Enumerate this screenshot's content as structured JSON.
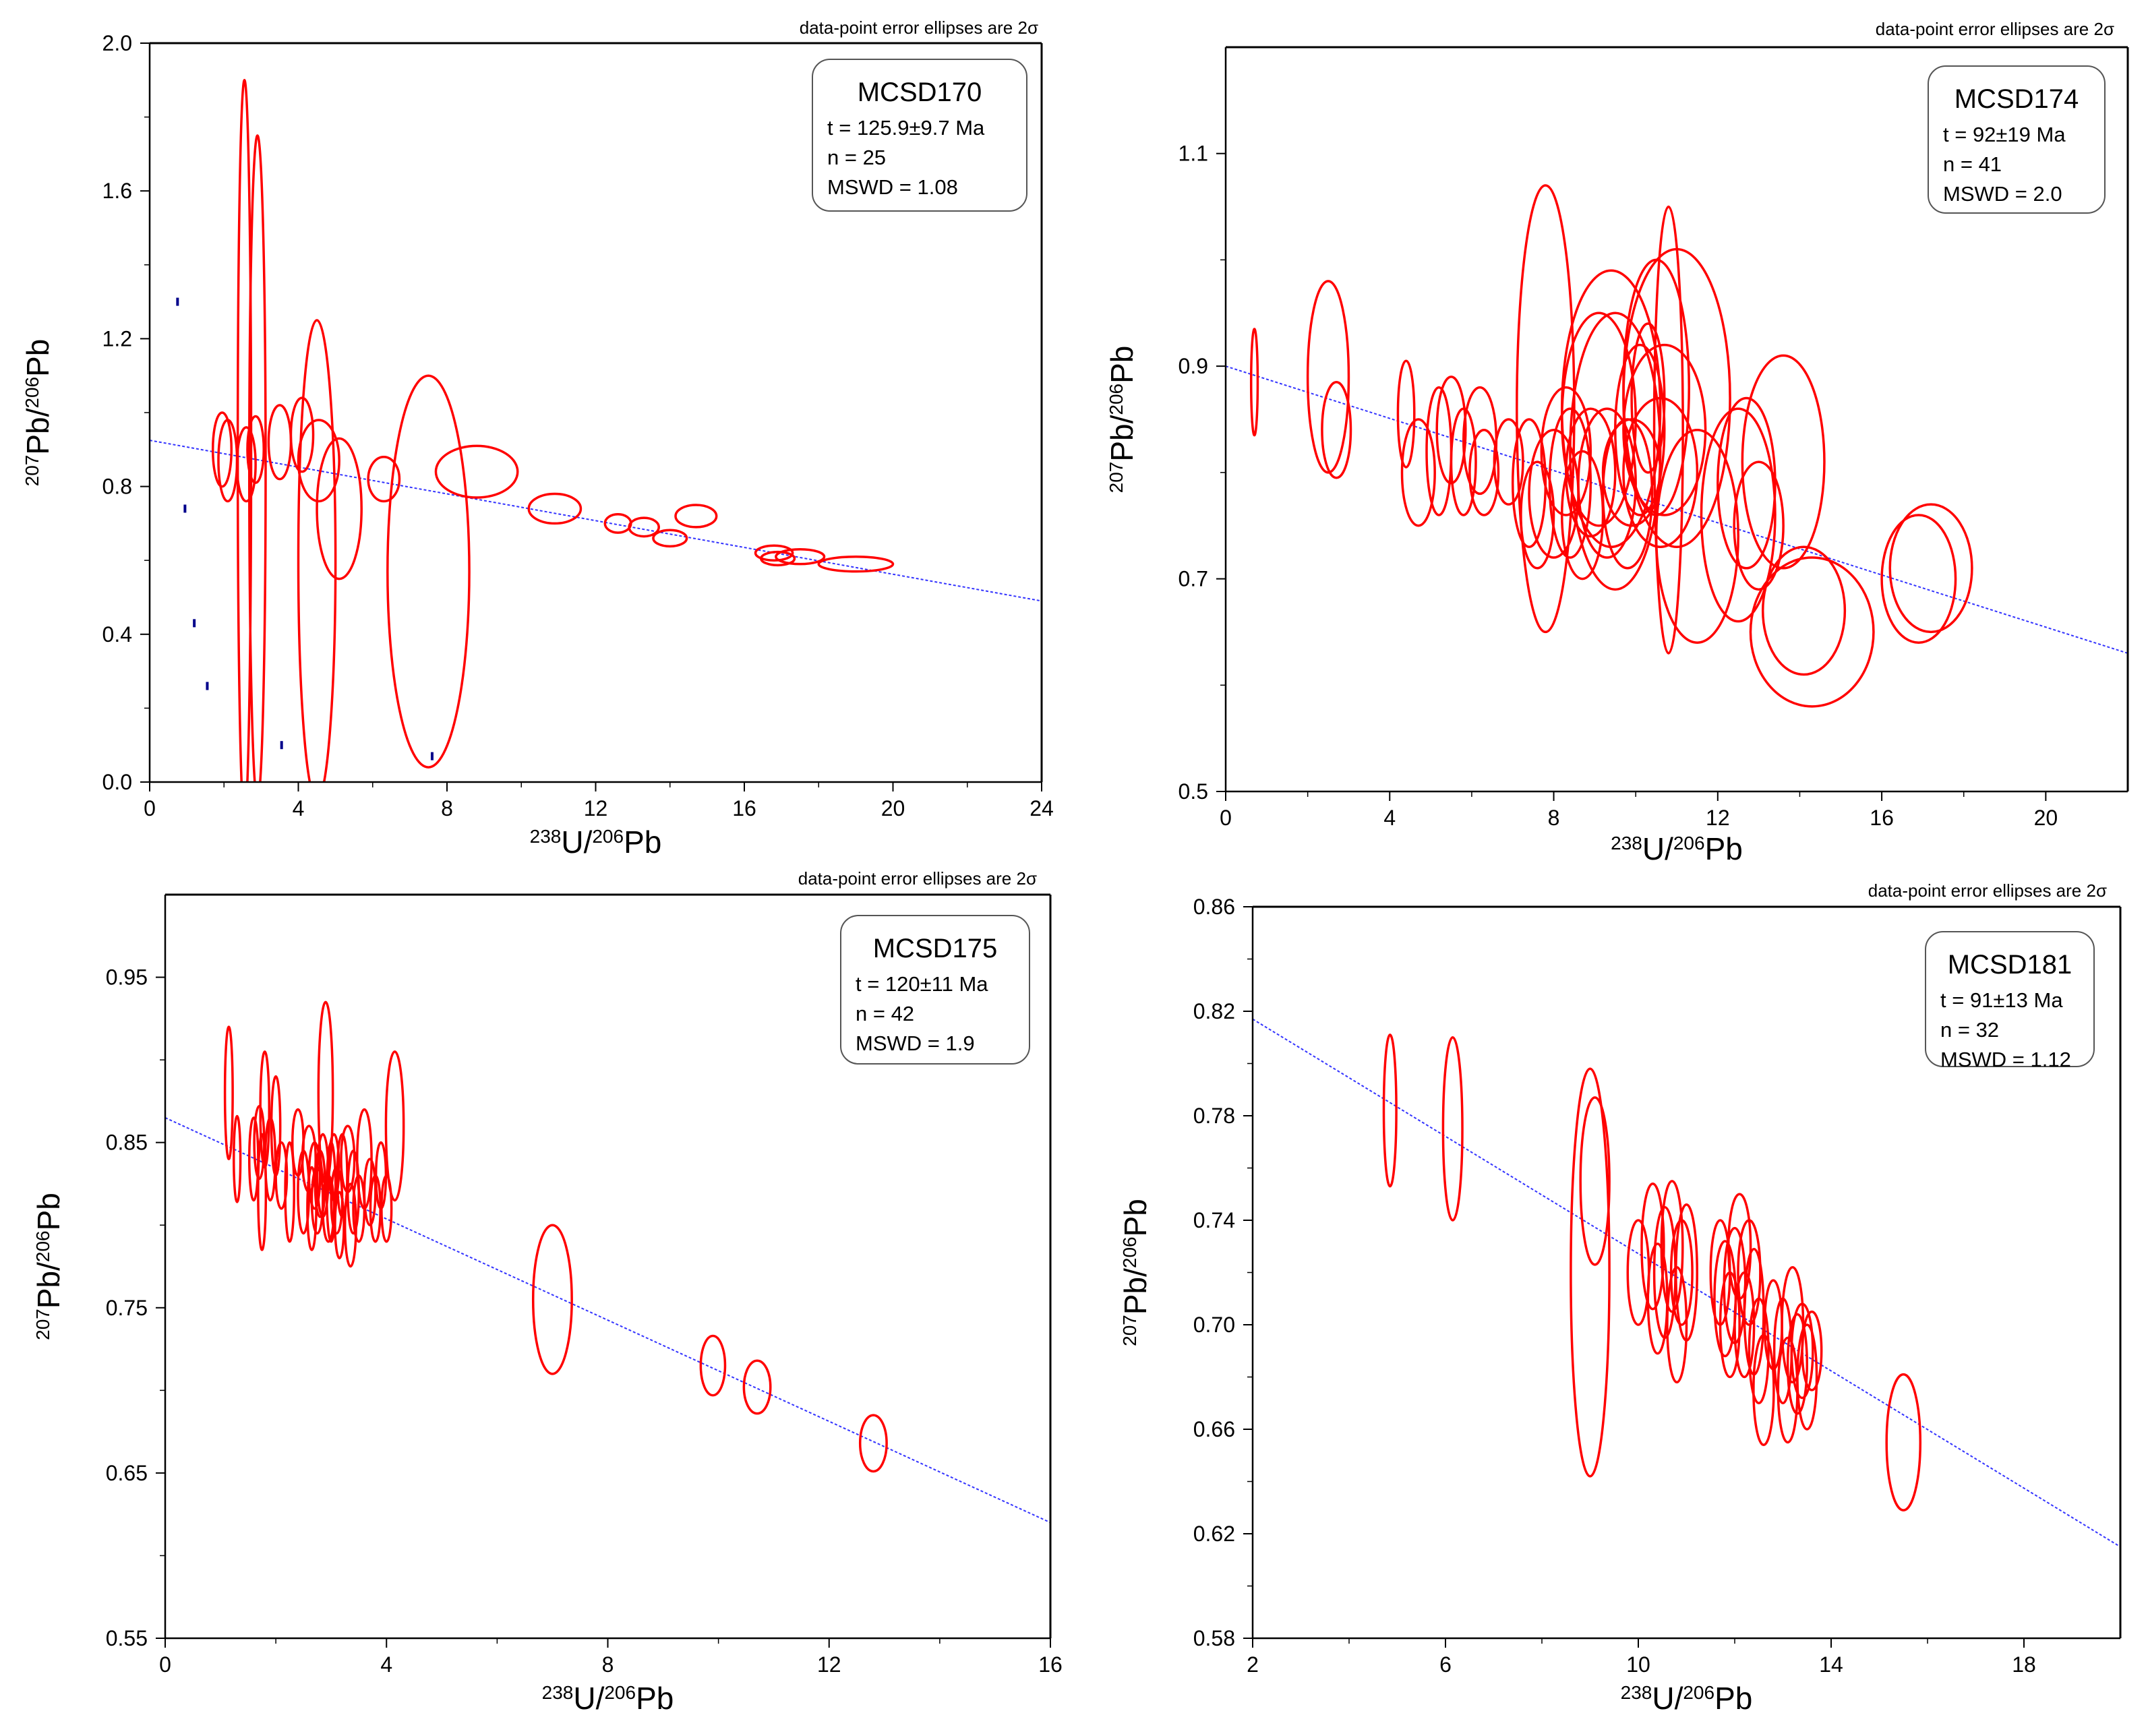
{
  "colors": {
    "ellipse": "#ff0000",
    "regression": "#3333ff",
    "axis": "#000000",
    "tick_marks": "#00008b"
  },
  "chart_data": [
    {
      "type": "scatter",
      "title": "MCSD170",
      "note": "data-point error ellipses are 2σ",
      "stats": {
        "age": "t = 125.9±9.7 Ma",
        "n": "n = 25",
        "mswd": "MSWD = 1.08"
      },
      "xlabel": {
        "base": "U/",
        "sup1": "238",
        "sup2": "206",
        "end": "Pb"
      },
      "ylabel": {
        "sup1": "207",
        "mid": "Pb/",
        "sup2": "206",
        "end": "Pb"
      },
      "xlim": [
        0,
        24
      ],
      "ylim": [
        0,
        2.0
      ],
      "xticks": [
        0,
        4,
        8,
        12,
        16,
        20,
        24
      ],
      "xtick_labels": [
        "0",
        "4",
        "8",
        "12",
        "16",
        "20",
        "24"
      ],
      "yticks": [
        0,
        0.4,
        0.8,
        1.2,
        1.6,
        2.0
      ],
      "ytick_labels": [
        "0.0",
        "0.4",
        "0.8",
        "1.2",
        "1.6",
        "2.0"
      ],
      "regression": {
        "x0": 0,
        "y0": 0.925,
        "x1": 24,
        "y1": 0.49
      },
      "ellipses": [
        {
          "x": 1.95,
          "y": 0.9,
          "rx": 0.25,
          "ry": 0.1
        },
        {
          "x": 2.1,
          "y": 0.87,
          "rx": 0.25,
          "ry": 0.11
        },
        {
          "x": 2.55,
          "y": 0.9,
          "rx": 0.18,
          "ry": 1.0
        },
        {
          "x": 2.6,
          "y": 0.86,
          "rx": 0.25,
          "ry": 0.1
        },
        {
          "x": 2.85,
          "y": 0.9,
          "rx": 0.22,
          "ry": 0.09
        },
        {
          "x": 2.9,
          "y": 0.85,
          "rx": 0.22,
          "ry": 0.9
        },
        {
          "x": 3.5,
          "y": 0.92,
          "rx": 0.3,
          "ry": 0.1
        },
        {
          "x": 4.1,
          "y": 0.94,
          "rx": 0.3,
          "ry": 0.1
        },
        {
          "x": 4.5,
          "y": 0.6,
          "rx": 0.5,
          "ry": 0.65
        },
        {
          "x": 4.55,
          "y": 0.87,
          "rx": 0.55,
          "ry": 0.11
        },
        {
          "x": 5.1,
          "y": 0.74,
          "rx": 0.6,
          "ry": 0.19
        },
        {
          "x": 6.3,
          "y": 0.82,
          "rx": 0.42,
          "ry": 0.06
        },
        {
          "x": 7.5,
          "y": 0.57,
          "rx": 1.1,
          "ry": 0.53
        },
        {
          "x": 8.8,
          "y": 0.84,
          "rx": 1.1,
          "ry": 0.07
        },
        {
          "x": 10.9,
          "y": 0.74,
          "rx": 0.7,
          "ry": 0.04
        },
        {
          "x": 12.6,
          "y": 0.7,
          "rx": 0.35,
          "ry": 0.025
        },
        {
          "x": 13.3,
          "y": 0.69,
          "rx": 0.4,
          "ry": 0.025
        },
        {
          "x": 14.0,
          "y": 0.66,
          "rx": 0.45,
          "ry": 0.022
        },
        {
          "x": 14.7,
          "y": 0.72,
          "rx": 0.55,
          "ry": 0.03
        },
        {
          "x": 16.8,
          "y": 0.62,
          "rx": 0.5,
          "ry": 0.02
        },
        {
          "x": 16.9,
          "y": 0.605,
          "rx": 0.45,
          "ry": 0.018
        },
        {
          "x": 17.5,
          "y": 0.61,
          "rx": 0.65,
          "ry": 0.02
        },
        {
          "x": 19.0,
          "y": 0.59,
          "rx": 1.0,
          "ry": 0.02
        }
      ],
      "dots": [
        {
          "x": 0.75,
          "y": 1.3
        },
        {
          "x": 0.95,
          "y": 0.74
        },
        {
          "x": 1.2,
          "y": 0.43
        },
        {
          "x": 1.55,
          "y": 0.26
        },
        {
          "x": 3.55,
          "y": 0.1
        },
        {
          "x": 7.6,
          "y": 0.07
        }
      ]
    },
    {
      "type": "scatter",
      "title": "MCSD174",
      "note": "data-point error ellipses are 2σ",
      "stats": {
        "age": "t = 92±19 Ma",
        "n": "n = 41",
        "mswd": "MSWD = 2.0"
      },
      "xlabel": {
        "base": "U/",
        "sup1": "238",
        "sup2": "206",
        "end": "Pb"
      },
      "ylabel": {
        "sup1": "207",
        "mid": "Pb/",
        "sup2": "206",
        "end": "Pb"
      },
      "xlim": [
        0,
        22
      ],
      "ylim": [
        0.5,
        1.2
      ],
      "xticks": [
        0,
        4,
        8,
        12,
        16,
        20
      ],
      "xtick_labels": [
        "0",
        "4",
        "8",
        "12",
        "16",
        "20"
      ],
      "yticks": [
        0.5,
        0.7,
        0.9,
        1.1
      ],
      "ytick_labels": [
        "0.5",
        "0.7",
        "0.9",
        "1.1"
      ],
      "regression": {
        "x0": 0,
        "y0": 0.9,
        "x1": 22,
        "y1": 0.63
      },
      "ellipses": [
        {
          "x": 0.7,
          "y": 0.885,
          "rx": 0.08,
          "ry": 0.05
        },
        {
          "x": 2.5,
          "y": 0.89,
          "rx": 0.5,
          "ry": 0.09
        },
        {
          "x": 2.7,
          "y": 0.84,
          "rx": 0.35,
          "ry": 0.045
        },
        {
          "x": 4.4,
          "y": 0.855,
          "rx": 0.2,
          "ry": 0.05
        },
        {
          "x": 4.7,
          "y": 0.8,
          "rx": 0.4,
          "ry": 0.05
        },
        {
          "x": 5.2,
          "y": 0.82,
          "rx": 0.3,
          "ry": 0.06
        },
        {
          "x": 5.5,
          "y": 0.84,
          "rx": 0.35,
          "ry": 0.05
        },
        {
          "x": 5.8,
          "y": 0.81,
          "rx": 0.3,
          "ry": 0.05
        },
        {
          "x": 6.2,
          "y": 0.83,
          "rx": 0.4,
          "ry": 0.05
        },
        {
          "x": 6.3,
          "y": 0.8,
          "rx": 0.35,
          "ry": 0.04
        },
        {
          "x": 6.9,
          "y": 0.81,
          "rx": 0.35,
          "ry": 0.04
        },
        {
          "x": 7.4,
          "y": 0.79,
          "rx": 0.4,
          "ry": 0.06
        },
        {
          "x": 7.6,
          "y": 0.76,
          "rx": 0.4,
          "ry": 0.05
        },
        {
          "x": 7.8,
          "y": 0.86,
          "rx": 0.7,
          "ry": 0.21
        },
        {
          "x": 8.0,
          "y": 0.78,
          "rx": 0.6,
          "ry": 0.06
        },
        {
          "x": 8.3,
          "y": 0.82,
          "rx": 0.6,
          "ry": 0.06
        },
        {
          "x": 8.4,
          "y": 0.79,
          "rx": 0.5,
          "ry": 0.07
        },
        {
          "x": 8.7,
          "y": 0.76,
          "rx": 0.5,
          "ry": 0.06
        },
        {
          "x": 8.9,
          "y": 0.8,
          "rx": 0.6,
          "ry": 0.06
        },
        {
          "x": 9.1,
          "y": 0.85,
          "rx": 0.9,
          "ry": 0.1
        },
        {
          "x": 9.3,
          "y": 0.79,
          "rx": 0.7,
          "ry": 0.07
        },
        {
          "x": 9.4,
          "y": 0.86,
          "rx": 1.2,
          "ry": 0.13
        },
        {
          "x": 9.5,
          "y": 0.82,
          "rx": 1.1,
          "ry": 0.13
        },
        {
          "x": 9.8,
          "y": 0.78,
          "rx": 0.6,
          "ry": 0.07
        },
        {
          "x": 9.9,
          "y": 0.8,
          "rx": 0.7,
          "ry": 0.05
        },
        {
          "x": 10.1,
          "y": 0.84,
          "rx": 0.6,
          "ry": 0.08
        },
        {
          "x": 10.3,
          "y": 0.87,
          "rx": 0.4,
          "ry": 0.07
        },
        {
          "x": 10.5,
          "y": 0.88,
          "rx": 0.8,
          "ry": 0.12
        },
        {
          "x": 10.6,
          "y": 0.8,
          "rx": 0.9,
          "ry": 0.07
        },
        {
          "x": 10.7,
          "y": 0.84,
          "rx": 1.0,
          "ry": 0.08
        },
        {
          "x": 10.8,
          "y": 0.84,
          "rx": 0.35,
          "ry": 0.21
        },
        {
          "x": 11.0,
          "y": 0.87,
          "rx": 1.3,
          "ry": 0.14
        },
        {
          "x": 11.5,
          "y": 0.74,
          "rx": 1.0,
          "ry": 0.1
        },
        {
          "x": 12.5,
          "y": 0.76,
          "rx": 0.9,
          "ry": 0.1
        },
        {
          "x": 12.7,
          "y": 0.79,
          "rx": 0.7,
          "ry": 0.08
        },
        {
          "x": 13.0,
          "y": 0.75,
          "rx": 0.6,
          "ry": 0.06
        },
        {
          "x": 13.6,
          "y": 0.81,
          "rx": 1.0,
          "ry": 0.1
        },
        {
          "x": 14.1,
          "y": 0.67,
          "rx": 1.0,
          "ry": 0.06
        },
        {
          "x": 14.3,
          "y": 0.65,
          "rx": 1.5,
          "ry": 0.07
        },
        {
          "x": 16.9,
          "y": 0.7,
          "rx": 0.9,
          "ry": 0.06
        },
        {
          "x": 17.2,
          "y": 0.71,
          "rx": 1.0,
          "ry": 0.06
        }
      ],
      "dots": []
    },
    {
      "type": "scatter",
      "title": "MCSD175",
      "note": "data-point error ellipses are 2σ",
      "stats": {
        "age": "t = 120±11 Ma",
        "n": "n = 42",
        "mswd": "MSWD = 1.9"
      },
      "xlabel": {
        "base": "U/",
        "sup1": "238",
        "sup2": "206",
        "end": "Pb"
      },
      "ylabel": {
        "sup1": "207",
        "mid": "Pb/",
        "sup2": "206",
        "end": "Pb"
      },
      "xlim": [
        0,
        16
      ],
      "ylim": [
        0.55,
        1.0
      ],
      "xticks": [
        0,
        4,
        8,
        12,
        16
      ],
      "xtick_labels": [
        "0",
        "4",
        "8",
        "12",
        "16"
      ],
      "yticks": [
        0.55,
        0.65,
        0.75,
        0.85,
        0.95
      ],
      "ytick_labels": [
        "0.55",
        "0.65",
        "0.75",
        "0.85",
        "0.95"
      ],
      "regression": {
        "x0": 0,
        "y0": 0.865,
        "x1": 16,
        "y1": 0.62
      },
      "ellipses": [
        {
          "x": 1.15,
          "y": 0.88,
          "rx": 0.07,
          "ry": 0.04
        },
        {
          "x": 1.3,
          "y": 0.84,
          "rx": 0.06,
          "ry": 0.026
        },
        {
          "x": 1.6,
          "y": 0.84,
          "rx": 0.08,
          "ry": 0.025
        },
        {
          "x": 1.7,
          "y": 0.85,
          "rx": 0.09,
          "ry": 0.022
        },
        {
          "x": 1.75,
          "y": 0.82,
          "rx": 0.07,
          "ry": 0.035
        },
        {
          "x": 1.8,
          "y": 0.87,
          "rx": 0.08,
          "ry": 0.035
        },
        {
          "x": 1.9,
          "y": 0.84,
          "rx": 0.09,
          "ry": 0.025
        },
        {
          "x": 2.0,
          "y": 0.86,
          "rx": 0.08,
          "ry": 0.03
        },
        {
          "x": 2.1,
          "y": 0.83,
          "rx": 0.1,
          "ry": 0.02
        },
        {
          "x": 2.25,
          "y": 0.82,
          "rx": 0.08,
          "ry": 0.03
        },
        {
          "x": 2.4,
          "y": 0.85,
          "rx": 0.1,
          "ry": 0.02
        },
        {
          "x": 2.5,
          "y": 0.82,
          "rx": 0.1,
          "ry": 0.025
        },
        {
          "x": 2.6,
          "y": 0.84,
          "rx": 0.12,
          "ry": 0.02
        },
        {
          "x": 2.65,
          "y": 0.81,
          "rx": 0.08,
          "ry": 0.025
        },
        {
          "x": 2.7,
          "y": 0.83,
          "rx": 0.1,
          "ry": 0.02
        },
        {
          "x": 2.75,
          "y": 0.815,
          "rx": 0.1,
          "ry": 0.02
        },
        {
          "x": 2.8,
          "y": 0.825,
          "rx": 0.09,
          "ry": 0.02
        },
        {
          "x": 2.85,
          "y": 0.83,
          "rx": 0.1,
          "ry": 0.025
        },
        {
          "x": 2.9,
          "y": 0.88,
          "rx": 0.13,
          "ry": 0.055
        },
        {
          "x": 2.95,
          "y": 0.81,
          "rx": 0.1,
          "ry": 0.02
        },
        {
          "x": 3.0,
          "y": 0.82,
          "rx": 0.08,
          "ry": 0.03
        },
        {
          "x": 3.05,
          "y": 0.835,
          "rx": 0.09,
          "ry": 0.02
        },
        {
          "x": 3.1,
          "y": 0.815,
          "rx": 0.1,
          "ry": 0.02
        },
        {
          "x": 3.15,
          "y": 0.8,
          "rx": 0.08,
          "ry": 0.02
        },
        {
          "x": 3.2,
          "y": 0.83,
          "rx": 0.09,
          "ry": 0.025
        },
        {
          "x": 3.3,
          "y": 0.84,
          "rx": 0.12,
          "ry": 0.02
        },
        {
          "x": 3.35,
          "y": 0.8,
          "rx": 0.1,
          "ry": 0.025
        },
        {
          "x": 3.4,
          "y": 0.82,
          "rx": 0.1,
          "ry": 0.025
        },
        {
          "x": 3.5,
          "y": 0.81,
          "rx": 0.1,
          "ry": 0.02
        },
        {
          "x": 3.6,
          "y": 0.84,
          "rx": 0.13,
          "ry": 0.03
        },
        {
          "x": 3.7,
          "y": 0.82,
          "rx": 0.1,
          "ry": 0.02
        },
        {
          "x": 3.8,
          "y": 0.81,
          "rx": 0.09,
          "ry": 0.02
        },
        {
          "x": 3.9,
          "y": 0.83,
          "rx": 0.09,
          "ry": 0.02
        },
        {
          "x": 4.0,
          "y": 0.81,
          "rx": 0.09,
          "ry": 0.02
        },
        {
          "x": 4.15,
          "y": 0.86,
          "rx": 0.16,
          "ry": 0.045
        },
        {
          "x": 7.0,
          "y": 0.755,
          "rx": 0.35,
          "ry": 0.045
        },
        {
          "x": 9.9,
          "y": 0.715,
          "rx": 0.22,
          "ry": 0.018
        },
        {
          "x": 10.7,
          "y": 0.702,
          "rx": 0.24,
          "ry": 0.016
        },
        {
          "x": 12.8,
          "y": 0.668,
          "rx": 0.24,
          "ry": 0.017
        }
      ],
      "dots": []
    },
    {
      "type": "scatter",
      "title": "MCSD181",
      "note": "data-point error ellipses are 2σ",
      "stats": {
        "age": "t = 91±13 Ma",
        "n": "n = 32",
        "mswd": "MSWD = 1.12"
      },
      "xlabel": {
        "base": "U/",
        "sup1": "238",
        "sup2": "206",
        "end": "Pb"
      },
      "ylabel": {
        "sup1": "207",
        "mid": "Pb/",
        "sup2": "206",
        "end": "Pb"
      },
      "xlim": [
        2,
        20
      ],
      "ylim": [
        0.58,
        0.86
      ],
      "xticks": [
        2,
        6,
        10,
        14,
        18
      ],
      "xtick_labels": [
        "2",
        "6",
        "10",
        "14",
        "18"
      ],
      "yticks": [
        0.58,
        0.62,
        0.66,
        0.7,
        0.74,
        0.78,
        0.82,
        0.86
      ],
      "ytick_labels": [
        "0.58",
        "0.62",
        "0.66",
        "0.70",
        "0.74",
        "0.78",
        "0.82",
        "0.86"
      ],
      "regression": {
        "x0": 2,
        "y0": 0.817,
        "x1": 20,
        "y1": 0.615
      },
      "ellipses": [
        {
          "x": 4.85,
          "y": 0.782,
          "rx": 0.13,
          "ry": 0.029
        },
        {
          "x": 6.15,
          "y": 0.775,
          "rx": 0.2,
          "ry": 0.035
        },
        {
          "x": 9.0,
          "y": 0.72,
          "rx": 0.4,
          "ry": 0.078
        },
        {
          "x": 9.1,
          "y": 0.755,
          "rx": 0.3,
          "ry": 0.032
        },
        {
          "x": 10.0,
          "y": 0.72,
          "rx": 0.22,
          "ry": 0.02
        },
        {
          "x": 10.3,
          "y": 0.73,
          "rx": 0.23,
          "ry": 0.024
        },
        {
          "x": 10.4,
          "y": 0.71,
          "rx": 0.2,
          "ry": 0.021
        },
        {
          "x": 10.55,
          "y": 0.72,
          "rx": 0.22,
          "ry": 0.025
        },
        {
          "x": 10.7,
          "y": 0.73,
          "rx": 0.22,
          "ry": 0.025
        },
        {
          "x": 10.8,
          "y": 0.7,
          "rx": 0.2,
          "ry": 0.022
        },
        {
          "x": 10.9,
          "y": 0.72,
          "rx": 0.22,
          "ry": 0.02
        },
        {
          "x": 11.0,
          "y": 0.72,
          "rx": 0.22,
          "ry": 0.026
        },
        {
          "x": 11.7,
          "y": 0.72,
          "rx": 0.2,
          "ry": 0.02
        },
        {
          "x": 11.8,
          "y": 0.71,
          "rx": 0.22,
          "ry": 0.022
        },
        {
          "x": 11.9,
          "y": 0.7,
          "rx": 0.2,
          "ry": 0.02
        },
        {
          "x": 12.0,
          "y": 0.715,
          "rx": 0.22,
          "ry": 0.022
        },
        {
          "x": 12.1,
          "y": 0.73,
          "rx": 0.23,
          "ry": 0.02
        },
        {
          "x": 12.2,
          "y": 0.7,
          "rx": 0.2,
          "ry": 0.02
        },
        {
          "x": 12.3,
          "y": 0.72,
          "rx": 0.23,
          "ry": 0.02
        },
        {
          "x": 12.4,
          "y": 0.705,
          "rx": 0.2,
          "ry": 0.024
        },
        {
          "x": 12.5,
          "y": 0.69,
          "rx": 0.2,
          "ry": 0.02
        },
        {
          "x": 12.6,
          "y": 0.675,
          "rx": 0.21,
          "ry": 0.021
        },
        {
          "x": 12.8,
          "y": 0.7,
          "rx": 0.18,
          "ry": 0.017
        },
        {
          "x": 13.0,
          "y": 0.69,
          "rx": 0.18,
          "ry": 0.02
        },
        {
          "x": 13.1,
          "y": 0.675,
          "rx": 0.2,
          "ry": 0.02
        },
        {
          "x": 13.2,
          "y": 0.7,
          "rx": 0.22,
          "ry": 0.022
        },
        {
          "x": 13.3,
          "y": 0.685,
          "rx": 0.2,
          "ry": 0.019
        },
        {
          "x": 13.4,
          "y": 0.69,
          "rx": 0.22,
          "ry": 0.018
        },
        {
          "x": 13.5,
          "y": 0.68,
          "rx": 0.2,
          "ry": 0.02
        },
        {
          "x": 13.6,
          "y": 0.69,
          "rx": 0.2,
          "ry": 0.015
        },
        {
          "x": 15.5,
          "y": 0.655,
          "rx": 0.35,
          "ry": 0.026
        }
      ],
      "dots": []
    }
  ]
}
